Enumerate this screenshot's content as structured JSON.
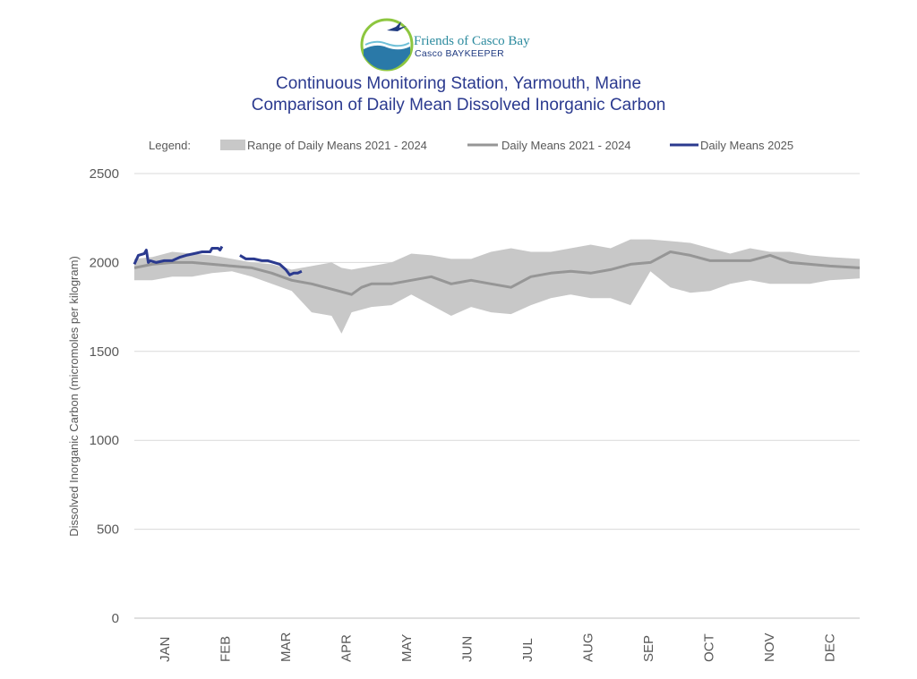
{
  "logo": {
    "name": "Friends of Casco Bay",
    "sub": "Casco BAYKEEPER"
  },
  "colors": {
    "title": "#2b3a8f",
    "band": "#c8c8c8",
    "mean": "#969696",
    "series2025": "#2b3a8f",
    "grid": "#d9d9d9",
    "logo_ring": "#8dc63f"
  },
  "chart_data": {
    "type": "line",
    "title": "Continuous Monitoring Station, Yarmouth, Maine",
    "subtitle": "Comparison of Daily Mean Dissolved Inorganic Carbon",
    "ylabel": "Dissolved Inorganic Carbon (micromoles per kilogram)",
    "xlabel": "",
    "ylim": [
      0,
      2500
    ],
    "yticks": [
      0,
      500,
      1000,
      1500,
      2000,
      2500
    ],
    "months": [
      "JAN",
      "FEB",
      "MAR",
      "APR",
      "MAY",
      "JUN",
      "JUL",
      "AUG",
      "SEP",
      "OCT",
      "NOV",
      "DEC"
    ],
    "x_unit": "day of year",
    "xlim": [
      1,
      365
    ],
    "grid": "horizontal",
    "legend": {
      "label": "Legend:",
      "position": "top",
      "entries": [
        "Range of Daily Means 2021 - 2024",
        "Daily Means 2021 - 2024",
        "Daily Means 2025"
      ]
    },
    "series": [
      {
        "name": "Range of Daily Means 2021 - 2024",
        "kind": "band",
        "x": [
          1,
          10,
          20,
          30,
          40,
          50,
          60,
          70,
          80,
          90,
          100,
          105,
          110,
          120,
          130,
          140,
          150,
          160,
          170,
          180,
          190,
          200,
          210,
          220,
          230,
          240,
          250,
          260,
          270,
          280,
          290,
          300,
          310,
          320,
          330,
          340,
          350,
          365
        ],
        "high": [
          2020,
          2030,
          2060,
          2050,
          2040,
          2020,
          2000,
          1990,
          1960,
          1980,
          2000,
          1970,
          1960,
          1980,
          2000,
          2050,
          2040,
          2020,
          2020,
          2060,
          2080,
          2060,
          2060,
          2080,
          2100,
          2080,
          2130,
          2130,
          2120,
          2110,
          2080,
          2050,
          2080,
          2060,
          2060,
          2040,
          2030,
          2020
        ],
        "low": [
          1900,
          1900,
          1920,
          1920,
          1940,
          1950,
          1920,
          1880,
          1840,
          1720,
          1700,
          1600,
          1720,
          1750,
          1760,
          1820,
          1760,
          1700,
          1750,
          1720,
          1710,
          1760,
          1800,
          1820,
          1800,
          1800,
          1760,
          1950,
          1860,
          1830,
          1840,
          1880,
          1900,
          1880,
          1880,
          1880,
          1900,
          1910
        ]
      },
      {
        "name": "Daily Means 2021 - 2024",
        "kind": "line",
        "x": [
          1,
          10,
          20,
          30,
          40,
          50,
          60,
          70,
          80,
          90,
          100,
          110,
          115,
          120,
          130,
          140,
          150,
          160,
          170,
          180,
          190,
          200,
          210,
          220,
          230,
          240,
          250,
          260,
          270,
          280,
          290,
          300,
          310,
          320,
          330,
          340,
          350,
          365
        ],
        "y": [
          1970,
          1990,
          2000,
          2000,
          1990,
          1980,
          1970,
          1940,
          1900,
          1880,
          1850,
          1820,
          1860,
          1880,
          1880,
          1900,
          1920,
          1880,
          1900,
          1880,
          1860,
          1920,
          1940,
          1950,
          1940,
          1960,
          1990,
          2000,
          2060,
          2040,
          2010,
          2010,
          2010,
          2040,
          2000,
          1990,
          1980,
          1970
        ]
      },
      {
        "name": "Daily Means 2025",
        "kind": "line",
        "segments": [
          {
            "x": [
              1,
              3,
              6,
              7,
              8,
              9,
              12,
              16,
              20,
              24,
              27,
              31,
              35,
              39,
              40,
              43,
              44,
              45
            ],
            "y": [
              1990,
              2040,
              2050,
              2070,
              2000,
              2010,
              2000,
              2010,
              2010,
              2030,
              2040,
              2050,
              2060,
              2060,
              2080,
              2080,
              2070,
              2090
            ]
          },
          {
            "x": [
              54,
              57,
              61,
              65,
              68,
              71,
              74,
              77,
              79,
              81,
              83,
              85
            ],
            "y": [
              2040,
              2020,
              2020,
              2010,
              2010,
              2000,
              1990,
              1960,
              1930,
              1940,
              1940,
              1950
            ]
          }
        ]
      }
    ]
  }
}
